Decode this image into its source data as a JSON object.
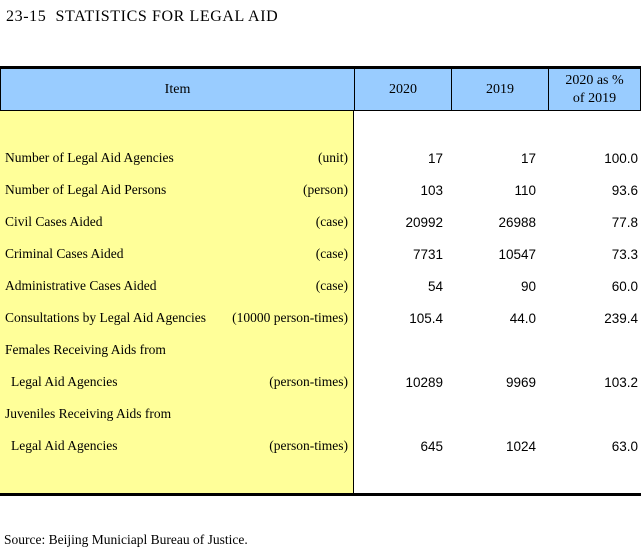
{
  "page": {
    "title": "23-15  STATISTICS FOR LEGAL AID",
    "source": "Source: Beijing Municiapl Bureau of Justice."
  },
  "colors": {
    "header_bg": "#99CCFF",
    "stub_bg": "#FFFF99",
    "border": "#000000"
  },
  "table": {
    "header": {
      "item": "Item",
      "y2020": "2020",
      "y2019": "2019",
      "ratio_line1": "2020 as %",
      "ratio_line2": "of 2019"
    },
    "rows": [
      {
        "label": "Number of Legal Aid Agencies",
        "unit": "(unit)",
        "v2020": "17",
        "v2019": "17",
        "ratio": "100.0"
      },
      {
        "label": "Number of Legal Aid Persons",
        "unit": "(person)",
        "v2020": "103",
        "v2019": "110",
        "ratio": "93.6"
      },
      {
        "label": "Civil Cases Aided",
        "unit": "(case)",
        "v2020": "20992",
        "v2019": "26988",
        "ratio": "77.8"
      },
      {
        "label": "Criminal Cases Aided",
        "unit": "(case)",
        "v2020": "7731",
        "v2019": "10547",
        "ratio": "73.3"
      },
      {
        "label": "Administrative Cases Aided",
        "unit": "(case)",
        "v2020": "54",
        "v2019": "90",
        "ratio": "60.0"
      },
      {
        "label": "Consultations by Legal Aid Agencies",
        "unit": "(10000 person-times)",
        "v2020": "105.4",
        "v2019": "44.0",
        "ratio": "239.4"
      },
      {
        "label": "Females Receiving Aids from",
        "unit": "",
        "v2020": "",
        "v2019": "",
        "ratio": ""
      },
      {
        "label": "Legal Aid Agencies",
        "unit": "(person-times)",
        "v2020": "10289",
        "v2019": "9969",
        "ratio": "103.2"
      },
      {
        "label": "Juveniles Receiving Aids from",
        "unit": "",
        "v2020": "",
        "v2019": "",
        "ratio": ""
      },
      {
        "label": "Legal Aid Agencies",
        "unit": "(person-times)",
        "v2020": "645",
        "v2019": "1024",
        "ratio": "63.0"
      }
    ]
  }
}
